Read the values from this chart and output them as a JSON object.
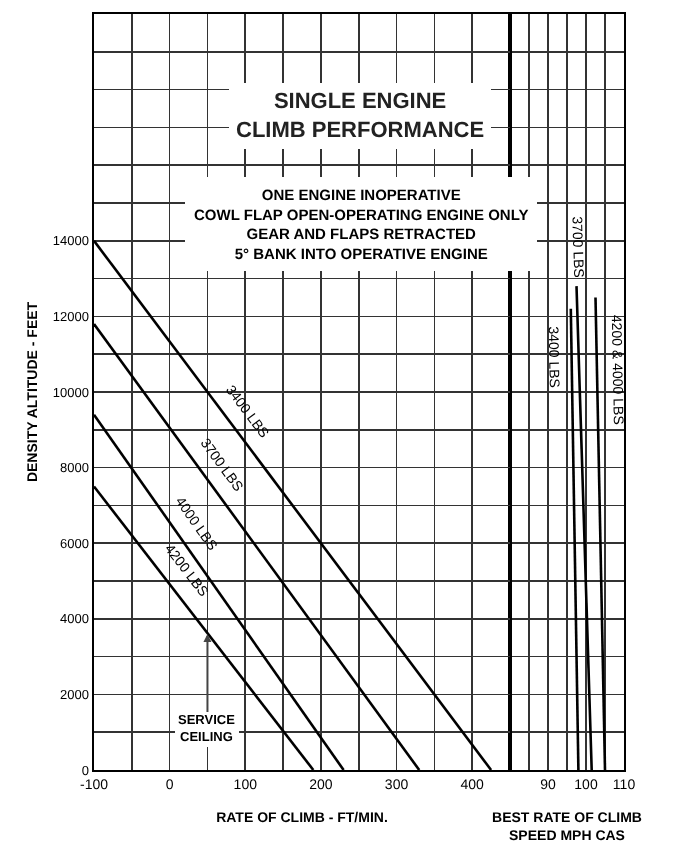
{
  "chart_data": [
    {
      "type": "line",
      "title": "SINGLE ENGINE\nCLIMB PERFORMANCE",
      "subtitle": "ONE ENGINE INOPERATIVE\nCOWL FLAP OPEN-OPERATING ENGINE ONLY\nGEAR AND FLAPS RETRACTED\n5° BANK INTO OPERATIVE ENGINE",
      "xlabel": "RATE OF CLIMB - FT/MIN.",
      "ylabel": "DENSITY ALTITUDE - FEET",
      "series": [
        {
          "name": "3400 LBS",
          "color": "#000000",
          "x": [
            -100,
            425
          ],
          "values": [
            14000,
            0
          ]
        },
        {
          "name": "3700 LBS",
          "color": "#000000",
          "x": [
            -100,
            330
          ],
          "values": [
            11800,
            0
          ]
        },
        {
          "name": "4000 LBS",
          "color": "#000000",
          "x": [
            -100,
            230
          ],
          "values": [
            9400,
            0
          ]
        },
        {
          "name": "4200 LBS",
          "color": "#000000",
          "x": [
            -100,
            190
          ],
          "values": [
            7500,
            0
          ]
        }
      ],
      "annotations": [
        {
          "text": "SERVICE\nCEILING",
          "x": 50,
          "y": 3600
        }
      ],
      "xlim": [
        -100,
        450
      ],
      "xticks": [
        -100,
        {
          "value": -50,
          "label": null
        },
        0,
        {
          "value": 50,
          "label": null
        },
        100,
        {
          "value": 150,
          "label": null
        },
        200,
        {
          "value": 250,
          "label": null
        },
        300,
        {
          "value": 350,
          "label": null
        },
        400,
        {
          "value": 450,
          "label": null
        }
      ],
      "ylim": [
        0,
        20000
      ],
      "yticks": [
        0,
        {
          "value": 1000,
          "label": null
        },
        2000,
        {
          "value": 3000,
          "label": null
        },
        4000,
        {
          "value": 5000,
          "label": null
        },
        6000,
        {
          "value": 7000,
          "label": null
        },
        8000,
        {
          "value": 9000,
          "label": null
        },
        10000,
        {
          "value": 11000,
          "label": null
        },
        12000,
        {
          "value": 13000,
          "label": null
        },
        14000,
        {
          "value": 15000,
          "label": null
        },
        {
          "value": 16000,
          "label": null
        },
        {
          "value": 17000,
          "label": null
        },
        {
          "value": 18000,
          "label": null
        },
        {
          "value": 19000,
          "label": null
        },
        {
          "value": 20000,
          "label": null
        }
      ],
      "grid": true
    },
    {
      "type": "line",
      "xlabel": "BEST RATE OF CLIMB\nSPEED MPH CAS",
      "series": [
        {
          "name": "3400 LBS",
          "color": "#000000",
          "x": [
            98,
            96
          ],
          "values": [
            0,
            12200
          ]
        },
        {
          "name": "3700 LBS",
          "color": "#000000",
          "x": [
            101.5,
            97.5
          ],
          "values": [
            0,
            12800
          ]
        },
        {
          "name": "4200 & 4000 LBS",
          "color": "#000000",
          "x": [
            105,
            102.5
          ],
          "values": [
            0,
            12500
          ]
        }
      ],
      "xlim": [
        80,
        110
      ],
      "xticks": [
        {
          "value": 80,
          "label": null
        },
        {
          "value": 85,
          "label": null
        },
        90,
        {
          "value": 95,
          "label": null
        },
        100,
        {
          "value": 105,
          "label": null
        },
        110
      ],
      "ylim": [
        0,
        20000
      ],
      "yticks": [
        0,
        {
          "value": 1000,
          "label": null
        },
        {
          "value": 2000,
          "label": null
        },
        {
          "value": 3000,
          "label": null
        },
        {
          "value": 4000,
          "label": null
        },
        {
          "value": 5000,
          "label": null
        },
        {
          "value": 6000,
          "label": null
        },
        {
          "value": 7000,
          "label": null
        },
        {
          "value": 8000,
          "label": null
        },
        {
          "value": 9000,
          "label": null
        },
        {
          "value": 10000,
          "label": null
        },
        {
          "value": 11000,
          "label": null
        },
        {
          "value": 12000,
          "label": null
        },
        {
          "value": 13000,
          "label": null
        },
        {
          "value": 14000,
          "label": null
        },
        {
          "value": 15000,
          "label": null
        },
        {
          "value": 16000,
          "label": null
        },
        {
          "value": 17000,
          "label": null
        },
        {
          "value": 18000,
          "label": null
        },
        {
          "value": 19000,
          "label": null
        },
        {
          "value": 20000,
          "label": null
        }
      ],
      "tick_labels": "x",
      "grid": true
    }
  ]
}
